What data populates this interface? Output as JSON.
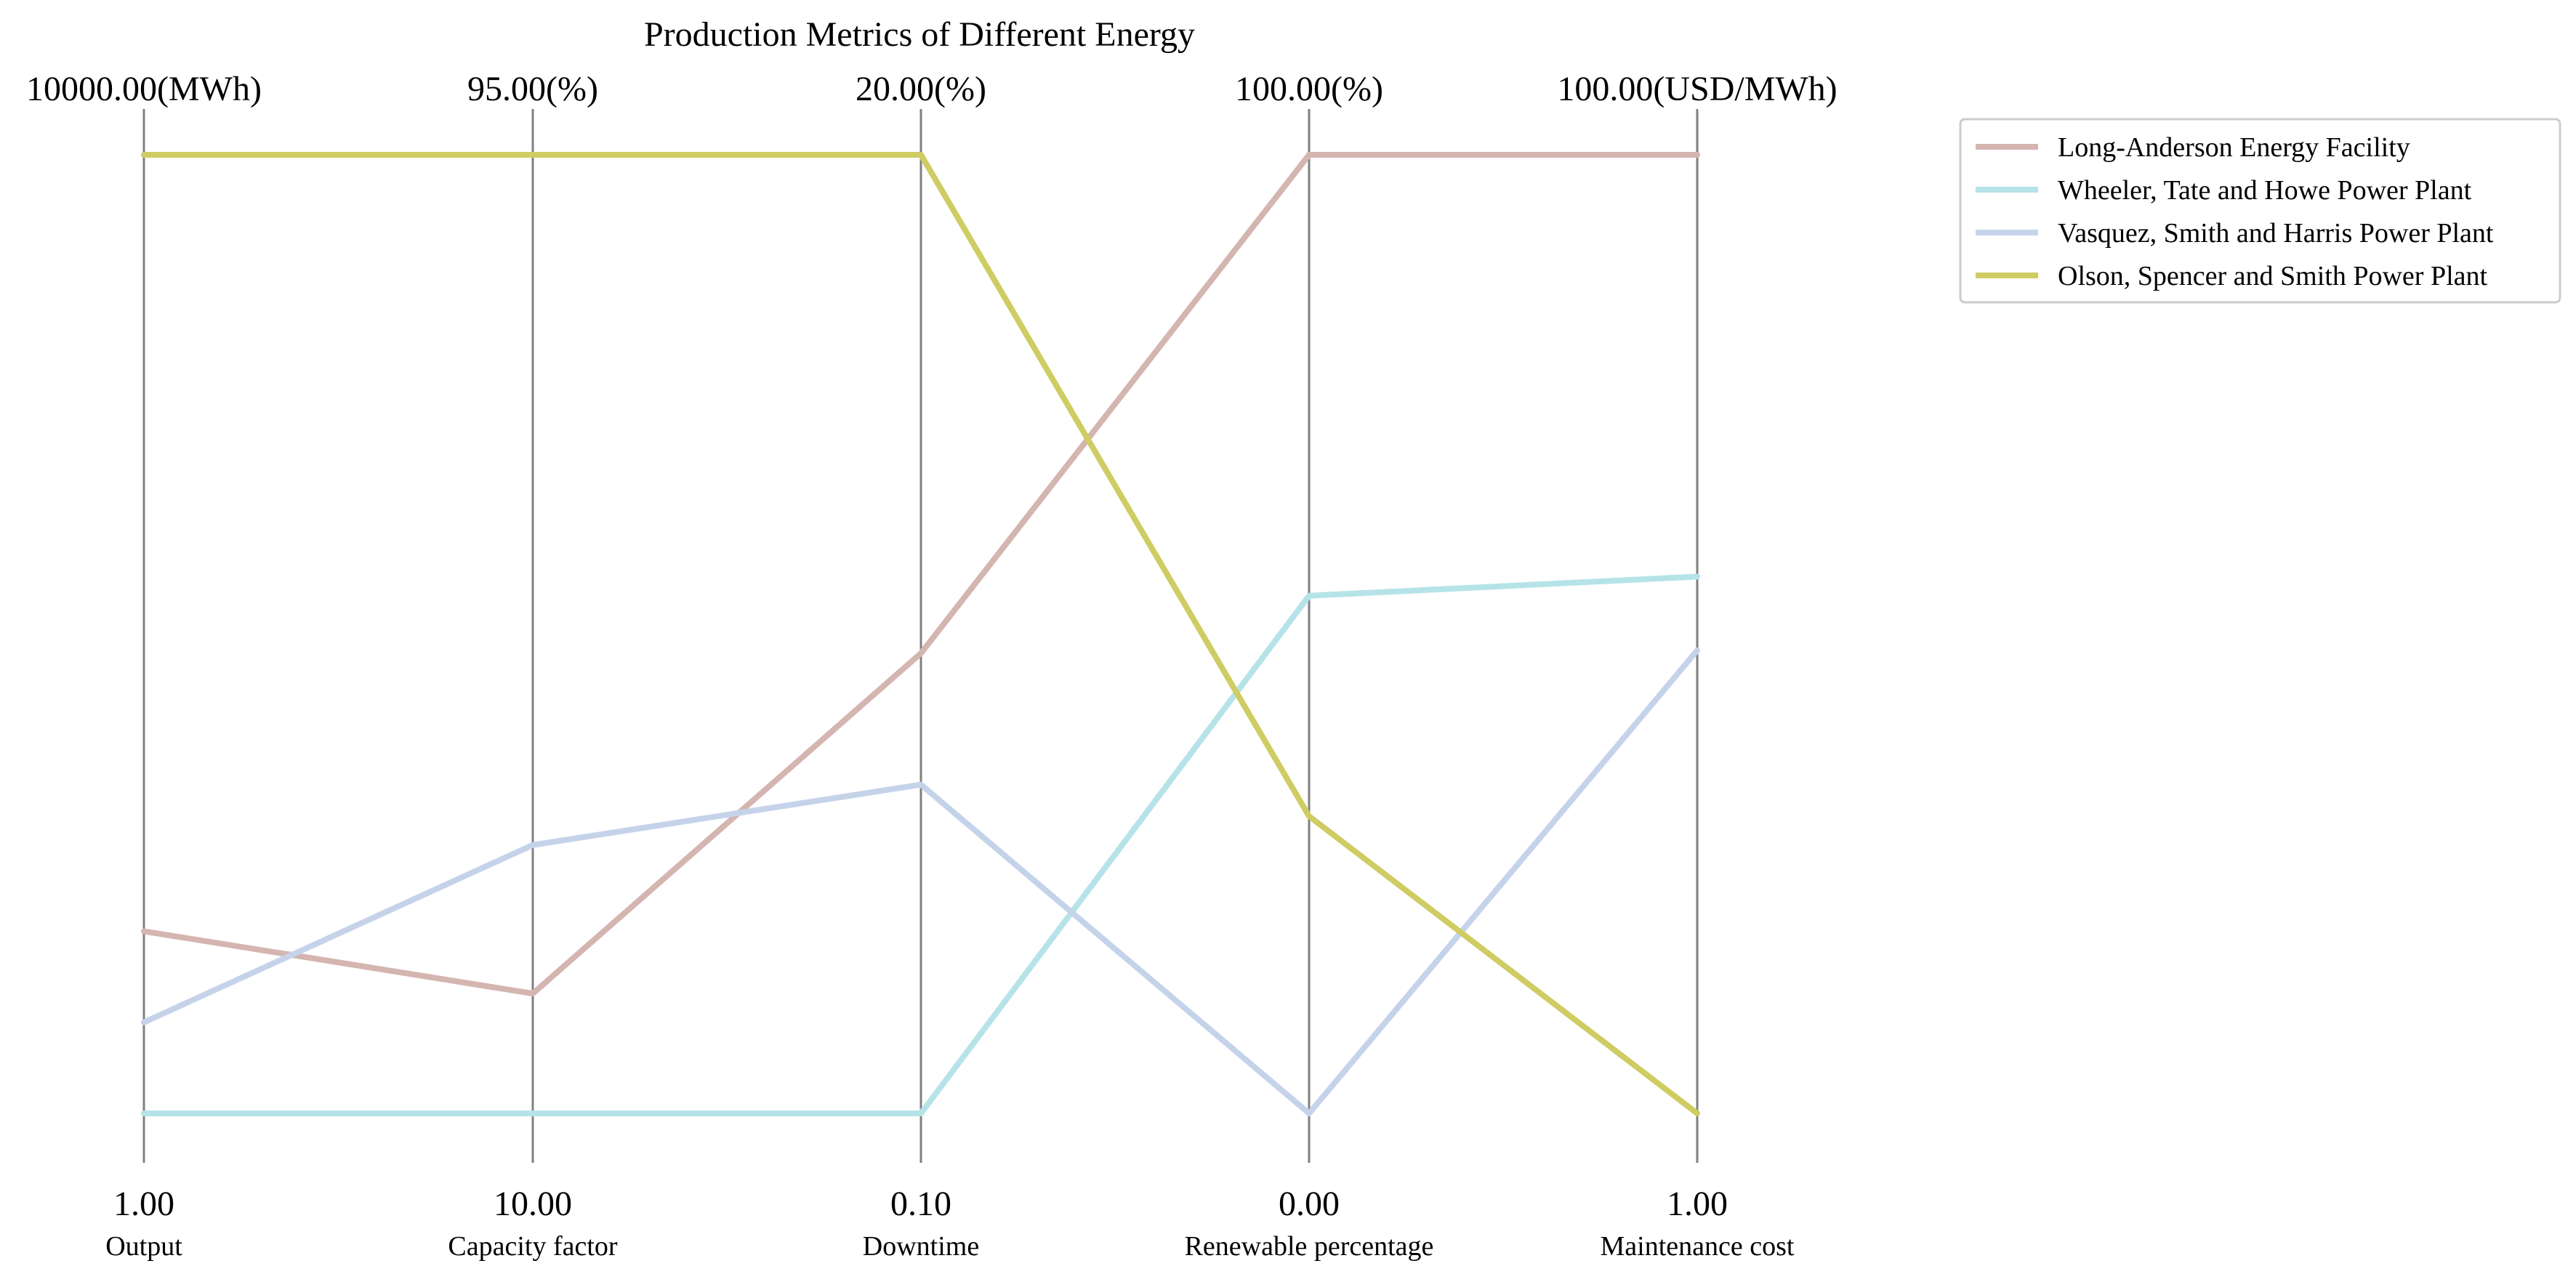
{
  "chart_data": {
    "type": "line",
    "title": "Production Metrics of Different Energy",
    "axes": [
      {
        "name": "Output",
        "min_label": "1.00",
        "max_label": "10000.00(MWh)"
      },
      {
        "name": "Capacity factor",
        "min_label": "10.00",
        "max_label": "95.00(%)"
      },
      {
        "name": "Downtime",
        "min_label": "0.10",
        "max_label": "20.00(%)"
      },
      {
        "name": "Renewable percentage",
        "min_label": "0.00",
        "max_label": "100.00(%)"
      },
      {
        "name": "Maintenance cost",
        "min_label": "1.00",
        "max_label": "100.00(USD/MWh)"
      }
    ],
    "series": [
      {
        "name": "Long-Anderson  Energy Facility",
        "color": "#d4b5b0",
        "values": [
          0.19,
          0.125,
          0.48,
          1.0,
          1.0
        ]
      },
      {
        "name": "Wheeler, Tate and Howe  Power Plant",
        "color": "#b5e3e8",
        "values": [
          0.0,
          0.0,
          0.0,
          0.54,
          0.56
        ]
      },
      {
        "name": "Vasquez, Smith and Harris  Power Plant",
        "color": "#c5d3ea",
        "values": [
          0.095,
          0.28,
          0.343,
          0.0,
          0.483
        ]
      },
      {
        "name": "Olson, Spencer and Smith  Power Plant",
        "color": "#cfcc63",
        "values": [
          1.0,
          1.0,
          1.0,
          0.31,
          0.0
        ]
      }
    ],
    "legend": "top-right",
    "grid": false
  }
}
